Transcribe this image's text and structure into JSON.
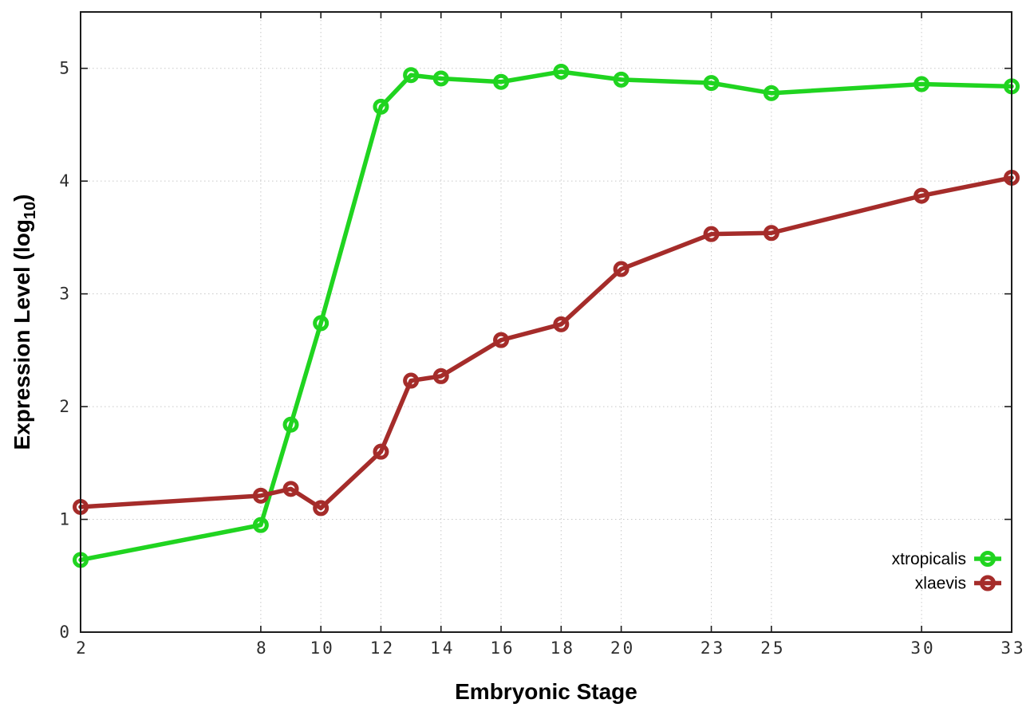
{
  "chart_data": {
    "type": "line",
    "title": "",
    "xlabel": "Embryonic Stage",
    "ylabel": "Expression Level (log10)",
    "ylabel_parts": {
      "prefix": "Expression Level (log",
      "sub": "10",
      "suffix": ")"
    },
    "x": [
      2,
      8,
      9,
      10,
      12,
      13,
      14,
      16,
      18,
      20,
      23,
      25,
      30,
      33
    ],
    "series": [
      {
        "name": "xtropicalis",
        "color": "#20d420",
        "values": [
          0.64,
          0.95,
          1.84,
          2.74,
          4.66,
          4.94,
          4.91,
          4.88,
          4.97,
          4.9,
          4.87,
          4.78,
          4.86,
          4.84
        ]
      },
      {
        "name": "xlaevis",
        "color": "#a52c2a",
        "values": [
          1.11,
          1.21,
          1.27,
          1.1,
          1.6,
          2.23,
          2.27,
          2.59,
          2.73,
          3.22,
          3.53,
          3.54,
          3.87,
          4.03
        ]
      }
    ],
    "x_tick_labels": [
      "2",
      "8",
      "10",
      "12",
      "14",
      "16",
      "18",
      "20",
      "23",
      "25",
      "30",
      "33"
    ],
    "y_tick_labels": [
      "0",
      "1",
      "2",
      "3",
      "4",
      "5"
    ],
    "xlim": [
      2,
      33
    ],
    "ylim": [
      0,
      5.5
    ],
    "grid": true,
    "legend_position": "inside-right-lower",
    "colors": {
      "grid": "#c8c8c8",
      "axis": "#1c1c1c",
      "tick_text": "#2e2e2e",
      "background": "#ffffff"
    }
  }
}
